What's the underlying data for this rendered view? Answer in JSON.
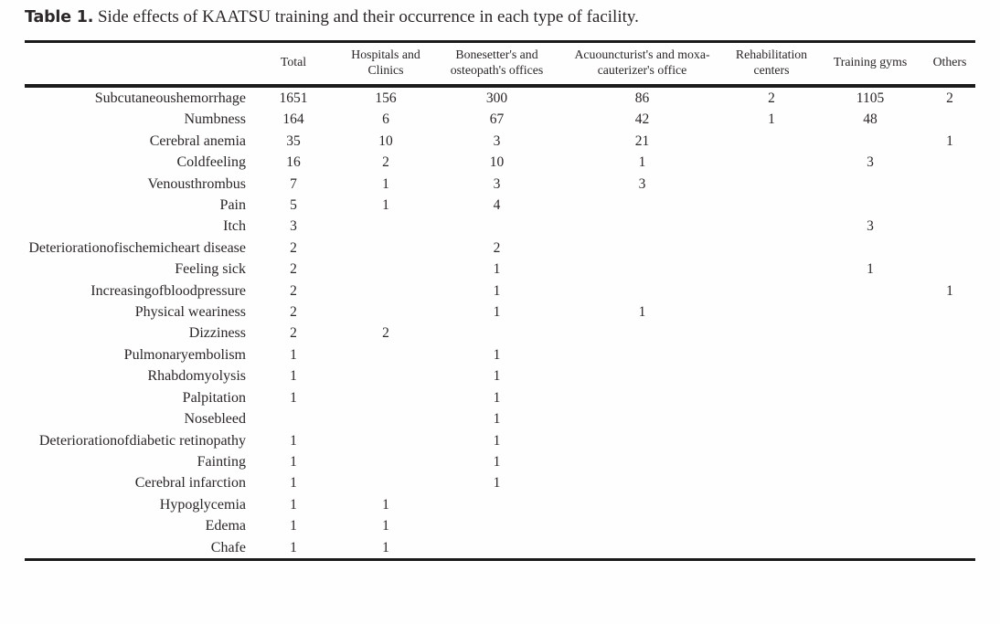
{
  "title": {
    "label": "Table 1.",
    "text": " Side effects of KAATSU training and their occurrence in each type of facility."
  },
  "colors": {
    "text": "#2b2627",
    "rule": "#1b1b1b",
    "background": "#fefefe"
  },
  "table": {
    "columns": [
      {
        "key": "side-effect",
        "label": ""
      },
      {
        "key": "total",
        "label": "Total"
      },
      {
        "key": "hospitals-and-clinics",
        "label": "Hospitals and Clinics"
      },
      {
        "key": "bonesetters-and-osteopaths-offices",
        "label": "Bonesetter's and osteopath's offices"
      },
      {
        "key": "acupuncturists-and-moxa-cauterizers-office",
        "label": "Acuouncturist's and moxa-cauterizer's office"
      },
      {
        "key": "rehabilitation-centers",
        "label": "Rehabilitation centers"
      },
      {
        "key": "training-gyms",
        "label": "Training gyms"
      },
      {
        "key": "others",
        "label": "Others"
      }
    ],
    "rows": [
      {
        "key": "subcutaneous-hemorrhage",
        "label": "Subcutaneoushemorrhage",
        "values": [
          "1651",
          "156",
          "300",
          "86",
          "2",
          "1105",
          "2"
        ]
      },
      {
        "key": "numbness",
        "label": "Numbness",
        "values": [
          "164",
          "6",
          "67",
          "42",
          "1",
          "48",
          ""
        ]
      },
      {
        "key": "cerebral-anemia",
        "label": "Cerebral anemia",
        "values": [
          "35",
          "10",
          "3",
          "21",
          "",
          "",
          "1"
        ]
      },
      {
        "key": "cold-feeling",
        "label": "Coldfeeling",
        "values": [
          "16",
          "2",
          "10",
          "1",
          "",
          "3",
          ""
        ]
      },
      {
        "key": "venous-thrombus",
        "label": "Venousthrombus",
        "values": [
          "7",
          "1",
          "3",
          "3",
          "",
          "",
          ""
        ]
      },
      {
        "key": "pain",
        "label": "Pain",
        "values": [
          "5",
          "1",
          "4",
          "",
          "",
          "",
          ""
        ]
      },
      {
        "key": "itch",
        "label": "Itch",
        "values": [
          "3",
          "",
          "",
          "",
          "",
          "3",
          ""
        ]
      },
      {
        "key": "deterioration-of-ischemic-heart-disease",
        "label": "Deteriorationofischemicheart disease",
        "values": [
          "2",
          "",
          "2",
          "",
          "",
          "",
          ""
        ]
      },
      {
        "key": "feeling-sick",
        "label": "Feeling sick",
        "values": [
          "2",
          "",
          "1",
          "",
          "",
          "1",
          ""
        ]
      },
      {
        "key": "increasing-of-blood-pressure",
        "label": "Increasingofbloodpressure",
        "values": [
          "2",
          "",
          "1",
          "",
          "",
          "",
          "1"
        ]
      },
      {
        "key": "physical-weariness",
        "label": "Physical weariness",
        "values": [
          "2",
          "",
          "1",
          "1",
          "",
          "",
          ""
        ]
      },
      {
        "key": "dizziness",
        "label": "Dizziness",
        "values": [
          "2",
          "2",
          "",
          "",
          "",
          "",
          ""
        ]
      },
      {
        "key": "pulmonary-embolism",
        "label": "Pulmonaryembolism",
        "values": [
          "1",
          "",
          "1",
          "",
          "",
          "",
          ""
        ]
      },
      {
        "key": "rhabdomyolysis",
        "label": "Rhabdomyolysis",
        "values": [
          "1",
          "",
          "1",
          "",
          "",
          "",
          ""
        ]
      },
      {
        "key": "palpitation",
        "label": "Palpitation",
        "values": [
          "1",
          "",
          "1",
          "",
          "",
          "",
          ""
        ]
      },
      {
        "key": "nosebleed",
        "label": "Nosebleed",
        "values": [
          "",
          "",
          "1",
          "",
          "",
          "",
          ""
        ]
      },
      {
        "key": "deterioration-of-diabetic-retinopathy",
        "label": "Deteriorationofdiabetic retinopathy",
        "values": [
          "1",
          "",
          "1",
          "",
          "",
          "",
          ""
        ]
      },
      {
        "key": "fainting",
        "label": "Fainting",
        "values": [
          "1",
          "",
          "1",
          "",
          "",
          "",
          ""
        ]
      },
      {
        "key": "cerebral-infarction",
        "label": "Cerebral infarction",
        "values": [
          "1",
          "",
          "1",
          "",
          "",
          "",
          ""
        ]
      },
      {
        "key": "hypoglycemia",
        "label": "Hypoglycemia",
        "values": [
          "1",
          "1",
          "",
          "",
          "",
          "",
          ""
        ]
      },
      {
        "key": "edema",
        "label": "Edema",
        "values": [
          "1",
          "1",
          "",
          "",
          "",
          "",
          ""
        ]
      },
      {
        "key": "chafe",
        "label": "Chafe",
        "values": [
          "1",
          "1",
          "",
          "",
          "",
          "",
          ""
        ]
      }
    ]
  }
}
